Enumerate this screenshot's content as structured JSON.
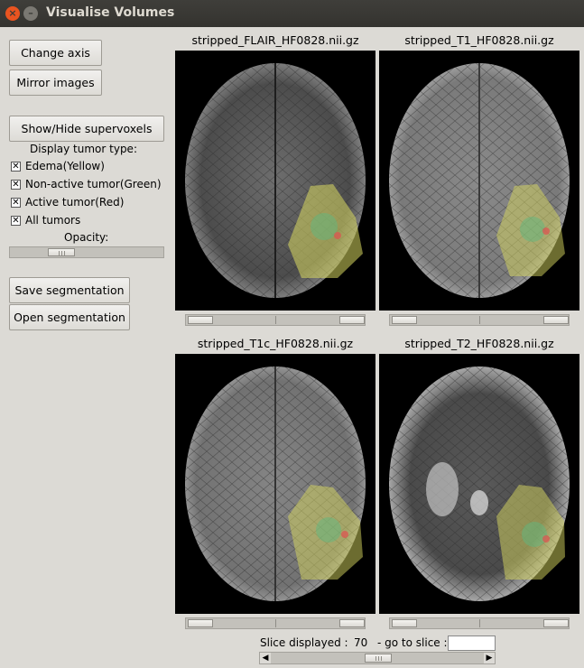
{
  "window": {
    "title": "Visualise Volumes",
    "close_glyph": "×",
    "minimize_glyph": "–"
  },
  "sidebar": {
    "change_axis": "Change axis",
    "mirror_images": "Mirror images",
    "show_hide_supervoxels": "Show/Hide supervoxels",
    "display_tumor_type": "Display tumor type:",
    "checkboxes": [
      {
        "label": "Edema(Yellow)",
        "checked": true,
        "mark": "✕"
      },
      {
        "label": "Non-active tumor(Green)",
        "checked": true,
        "mark": "✕"
      },
      {
        "label": "Active tumor(Red)",
        "checked": true,
        "mark": "✕"
      },
      {
        "label": "All tumors",
        "checked": true,
        "mark": "✕"
      }
    ],
    "opacity_label": "Opacity:",
    "opacity_value": 0.25,
    "save_segmentation": "Save segmentation",
    "open_segmentation": "Open segmentation"
  },
  "panels": [
    {
      "title": "stripped_FLAIR_HF0828.nii.gz",
      "icon": "brain-mri-flair-image"
    },
    {
      "title": "stripped_T1_HF0828.nii.gz",
      "icon": "brain-mri-t1-image"
    },
    {
      "title": "stripped_T1c_HF0828.nii.gz",
      "icon": "brain-mri-t1c-image"
    },
    {
      "title": "stripped_T2_HF0828.nii.gz",
      "icon": "brain-mri-t2-image"
    }
  ],
  "footer": {
    "slice_label": "Slice displayed :",
    "slice_value": "70",
    "goto_label": "- go to slice :",
    "goto_value": "",
    "left_arrow": "◀",
    "right_arrow": "▶"
  },
  "colors": {
    "edema": "#d8d860",
    "non_active": "#60b880",
    "active": "#e05050",
    "accent": "#e95420"
  }
}
